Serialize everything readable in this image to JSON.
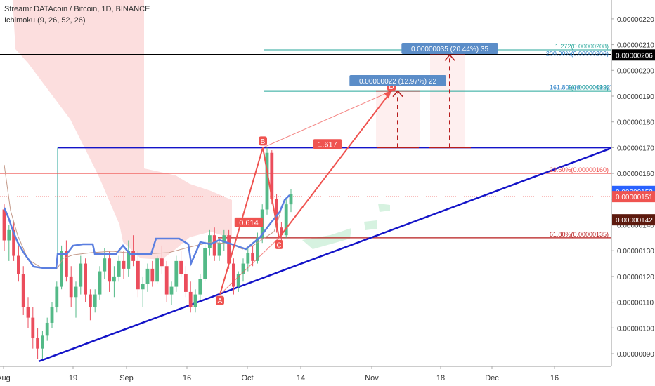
{
  "header": {
    "symbol_title": "Streamr DATAcoin / Bitcoin, 1D, BINANCE",
    "indicator": "Ichimoku (9, 26, 52, 26)"
  },
  "colors": {
    "candle_up": "#53b987",
    "candle_down": "#eb4d5c",
    "trendline": "#1414c8",
    "pattern": "#ef5350",
    "kijun": "#5b7fe0",
    "cloud": "#fcdede",
    "cloud_green": "#d6f2e0",
    "fib_line": "#26a69a",
    "black_line": "#000000"
  },
  "chart_data": {
    "type": "candlestick",
    "price_scale": {
      "ticks": [
        "0.00000220",
        "0.00000210",
        "0.00000200",
        "0.00000190",
        "0.00000180",
        "0.00000170",
        "0.00000160",
        "0.00000150",
        "0.00000140",
        "0.00000130",
        "0.00000120",
        "0.00000110",
        "0.00000100",
        "0.00000090"
      ],
      "tick_values": [
        220,
        210,
        200,
        190,
        180,
        170,
        160,
        150,
        140,
        130,
        120,
        110,
        100,
        90
      ],
      "unit": "×1e-8 BTC",
      "range": [
        84,
        224
      ]
    },
    "time_axis": {
      "labels": [
        "Aug",
        "19",
        "Sep",
        "16",
        "Oct",
        "14",
        "Nov",
        "18",
        "Dec",
        "16"
      ]
    },
    "price_badges": [
      {
        "label": "0.00000206",
        "value": 206,
        "style": "black"
      },
      {
        "label": "0.00000153",
        "value": 153,
        "style": "blue"
      },
      {
        "label": "0.00000151",
        "value": 151,
        "style": "red"
      },
      {
        "label": "0.00000142",
        "value": 142,
        "style": "dark"
      }
    ],
    "fib_labels": [
      {
        "text": "1.272(0.00000208)",
        "value": 208,
        "color": "#26a69a"
      },
      {
        "text": "200.00%(0.00000206)",
        "value": 206,
        "color": "#2a7fc8"
      },
      {
        "text": "161.80%(0.00000192)",
        "value": 192,
        "color": "#2a7fc8"
      },
      {
        "text": "1(0.00000192)",
        "value": 192,
        "color": "#26a69a"
      },
      {
        "text": "23.60%(0.00000160)",
        "value": 160,
        "color": "#ef5350"
      },
      {
        "text": "61.80%(0.00000135)",
        "value": 135,
        "color": "#b71c1c"
      }
    ],
    "pattern_points": [
      {
        "label": "A",
        "value": 113
      },
      {
        "label": "B",
        "value": 170
      },
      {
        "label": "C",
        "value": 135
      },
      {
        "label": "D",
        "value": 192
      }
    ],
    "pattern_ratios": [
      "0.614",
      "1.617"
    ],
    "measure_boxes": [
      {
        "text": "0.00000022 (12.97%) 22"
      },
      {
        "text": "0.00000035 (20.44%) 35"
      }
    ],
    "candles": [
      [
        146,
        148,
        130,
        134
      ],
      [
        134,
        140,
        126,
        138
      ],
      [
        138,
        141,
        126,
        128
      ],
      [
        128,
        132,
        118,
        121
      ],
      [
        121,
        124,
        105,
        108
      ],
      [
        108,
        112,
        100,
        104
      ],
      [
        104,
        108,
        92,
        96
      ],
      [
        96,
        100,
        88,
        92
      ],
      [
        92,
        99,
        88,
        97
      ],
      [
        97,
        104,
        95,
        102
      ],
      [
        102,
        110,
        100,
        108
      ],
      [
        108,
        118,
        106,
        116
      ],
      [
        116,
        132,
        115,
        130
      ],
      [
        130,
        134,
        118,
        120
      ],
      [
        120,
        124,
        108,
        112
      ],
      [
        112,
        118,
        104,
        116
      ],
      [
        116,
        128,
        113,
        125
      ],
      [
        125,
        127,
        110,
        113
      ],
      [
        113,
        115,
        103,
        108
      ],
      [
        108,
        115,
        106,
        113
      ],
      [
        113,
        124,
        111,
        122
      ],
      [
        122,
        131,
        119,
        127
      ],
      [
        127,
        130,
        114,
        118
      ],
      [
        118,
        124,
        112,
        120
      ],
      [
        120,
        128,
        118,
        126
      ],
      [
        126,
        130,
        119,
        123
      ],
      [
        123,
        134,
        120,
        130
      ],
      [
        130,
        136,
        124,
        126
      ],
      [
        126,
        130,
        112,
        115
      ],
      [
        115,
        120,
        108,
        117
      ],
      [
        117,
        125,
        114,
        123
      ],
      [
        123,
        126,
        116,
        118
      ],
      [
        118,
        128,
        117,
        127
      ],
      [
        127,
        132,
        121,
        124
      ],
      [
        124,
        126,
        110,
        113
      ],
      [
        113,
        118,
        109,
        116
      ],
      [
        116,
        128,
        114,
        126
      ],
      [
        126,
        130,
        120,
        121
      ],
      [
        121,
        124,
        112,
        114
      ],
      [
        114,
        118,
        106,
        108
      ],
      [
        108,
        115,
        106,
        113
      ],
      [
        113,
        121,
        111,
        119
      ],
      [
        119,
        134,
        118,
        131
      ],
      [
        131,
        138,
        128,
        136
      ],
      [
        136,
        139,
        126,
        128
      ],
      [
        128,
        135,
        126,
        133
      ],
      [
        133,
        138,
        130,
        136
      ],
      [
        136,
        138,
        123,
        125
      ],
      [
        125,
        127,
        113,
        116
      ],
      [
        116,
        122,
        114,
        121
      ],
      [
        121,
        127,
        118,
        125
      ],
      [
        125,
        131,
        122,
        129
      ],
      [
        129,
        132,
        124,
        126
      ],
      [
        126,
        137,
        125,
        135
      ],
      [
        135,
        148,
        133,
        146
      ],
      [
        146,
        170,
        144,
        168
      ],
      [
        168,
        169,
        148,
        150
      ],
      [
        150,
        152,
        137,
        139
      ],
      [
        139,
        141,
        134,
        136
      ],
      [
        136,
        150,
        135,
        148
      ],
      [
        148,
        154,
        145,
        152
      ]
    ]
  }
}
